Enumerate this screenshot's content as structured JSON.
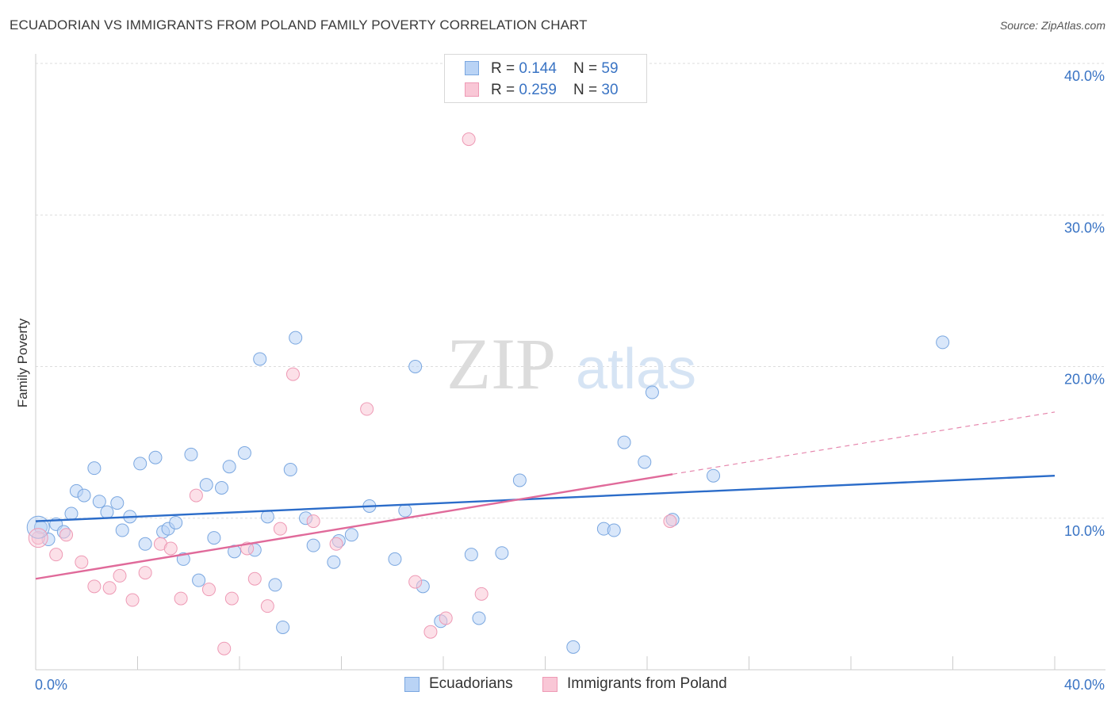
{
  "title": "ECUADORIAN VS IMMIGRANTS FROM POLAND FAMILY POVERTY CORRELATION CHART",
  "source": "Source: ZipAtlas.com",
  "watermark": {
    "zip": "ZIP",
    "atlas": "atlas"
  },
  "legend_top": {
    "rows": [
      {
        "r_label": "R = ",
        "r_value": "0.144",
        "n_label": "N = ",
        "n_value": "59",
        "fill": "#b9d3f5",
        "stroke": "#7aa7e0"
      },
      {
        "r_label": "R = ",
        "r_value": "0.259",
        "n_label": "N = ",
        "n_value": "30",
        "fill": "#f9c7d6",
        "stroke": "#ee9ab5"
      }
    ]
  },
  "chart_data": {
    "type": "scatter",
    "title": "ECUADORIAN VS IMMIGRANTS FROM POLAND FAMILY POVERTY CORRELATION CHART",
    "xlabel": "",
    "ylabel": "Family Poverty",
    "xlim": [
      0,
      40
    ],
    "ylim": [
      0,
      40
    ],
    "x_tick_labels": [
      "0.0%",
      "40.0%"
    ],
    "y_ticks": [
      10,
      20,
      30,
      40
    ],
    "y_tick_labels": [
      "10.0%",
      "20.0%",
      "30.0%",
      "40.0%"
    ],
    "grid": true,
    "series": [
      {
        "name": "Ecuadorians",
        "color": "#7aa7e0",
        "fill": "#b9d3f5",
        "line_color": "#2b6cc9",
        "trend": {
          "x0": 0,
          "y0": 9.8,
          "x1": 40,
          "y1": 12.8
        },
        "points": [
          [
            0.2,
            9.4
          ],
          [
            0.5,
            8.6
          ],
          [
            0.8,
            9.6
          ],
          [
            1.1,
            9.1
          ],
          [
            1.4,
            10.3
          ],
          [
            1.6,
            11.8
          ],
          [
            1.9,
            11.5
          ],
          [
            2.3,
            13.3
          ],
          [
            2.5,
            11.1
          ],
          [
            2.8,
            10.4
          ],
          [
            3.2,
            11.0
          ],
          [
            3.4,
            9.2
          ],
          [
            3.7,
            10.1
          ],
          [
            4.1,
            13.6
          ],
          [
            4.3,
            8.3
          ],
          [
            4.7,
            14.0
          ],
          [
            5.0,
            9.1
          ],
          [
            5.2,
            9.3
          ],
          [
            5.5,
            9.7
          ],
          [
            5.8,
            7.3
          ],
          [
            6.1,
            14.2
          ],
          [
            6.4,
            5.9
          ],
          [
            6.7,
            12.2
          ],
          [
            7.0,
            8.7
          ],
          [
            7.3,
            12.0
          ],
          [
            7.6,
            13.4
          ],
          [
            7.8,
            7.8
          ],
          [
            8.2,
            14.3
          ],
          [
            8.6,
            7.9
          ],
          [
            8.8,
            20.5
          ],
          [
            9.1,
            10.1
          ],
          [
            9.4,
            5.6
          ],
          [
            9.7,
            2.8
          ],
          [
            10.0,
            13.2
          ],
          [
            10.2,
            21.9
          ],
          [
            10.6,
            10.0
          ],
          [
            10.9,
            8.2
          ],
          [
            11.7,
            7.1
          ],
          [
            11.9,
            8.5
          ],
          [
            12.4,
            8.9
          ],
          [
            13.1,
            10.8
          ],
          [
            14.1,
            7.3
          ],
          [
            14.5,
            10.5
          ],
          [
            14.9,
            20.0
          ],
          [
            15.2,
            5.5
          ],
          [
            15.9,
            3.2
          ],
          [
            17.1,
            7.6
          ],
          [
            17.4,
            3.4
          ],
          [
            18.3,
            7.7
          ],
          [
            19.0,
            12.5
          ],
          [
            21.1,
            1.5
          ],
          [
            22.3,
            9.3
          ],
          [
            22.7,
            9.2
          ],
          [
            23.1,
            15.0
          ],
          [
            23.9,
            13.7
          ],
          [
            24.2,
            18.3
          ],
          [
            25.0,
            9.9
          ],
          [
            26.6,
            12.8
          ],
          [
            35.6,
            21.6
          ]
        ]
      },
      {
        "name": "Immigrants from Poland",
        "color": "#ee9ab5",
        "fill": "#f9c7d6",
        "line_color": "#e06a9a",
        "trend": {
          "x0": 0,
          "y0": 6.0,
          "x1": 25,
          "y1": 12.9
        },
        "trend_dashed": {
          "x0": 25,
          "y0": 12.9,
          "x1": 40,
          "y1": 17.0
        },
        "points": [
          [
            0.1,
            8.7
          ],
          [
            0.8,
            7.6
          ],
          [
            1.2,
            8.9
          ],
          [
            1.8,
            7.1
          ],
          [
            2.3,
            5.5
          ],
          [
            2.9,
            5.4
          ],
          [
            3.3,
            6.2
          ],
          [
            3.8,
            4.6
          ],
          [
            4.3,
            6.4
          ],
          [
            4.9,
            8.3
          ],
          [
            5.3,
            8.0
          ],
          [
            5.7,
            4.7
          ],
          [
            6.3,
            11.5
          ],
          [
            6.8,
            5.3
          ],
          [
            7.4,
            1.4
          ],
          [
            7.7,
            4.7
          ],
          [
            8.3,
            8.0
          ],
          [
            8.6,
            6.0
          ],
          [
            9.1,
            4.2
          ],
          [
            9.6,
            9.3
          ],
          [
            10.1,
            19.5
          ],
          [
            10.9,
            9.8
          ],
          [
            11.8,
            8.3
          ],
          [
            13.0,
            17.2
          ],
          [
            14.9,
            5.8
          ],
          [
            15.5,
            2.5
          ],
          [
            16.1,
            3.4
          ],
          [
            17.0,
            35.0
          ],
          [
            17.5,
            5.0
          ],
          [
            24.9,
            9.8
          ]
        ]
      }
    ]
  },
  "legend_bottom": [
    {
      "label": "Ecuadorians",
      "fill": "#b9d3f5",
      "stroke": "#7aa7e0"
    },
    {
      "label": "Immigrants from Poland",
      "fill": "#f9c7d6",
      "stroke": "#ee9ab5"
    }
  ]
}
